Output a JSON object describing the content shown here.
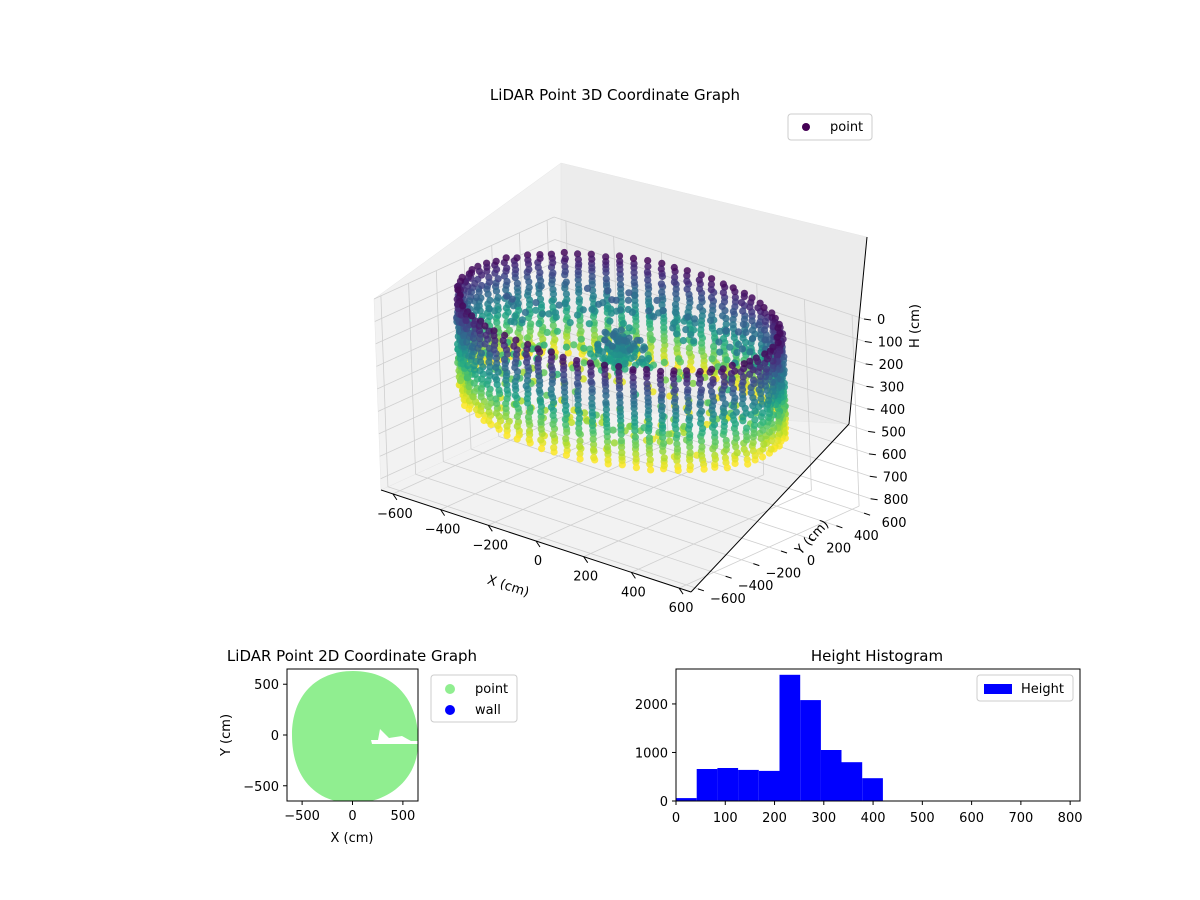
{
  "chart_data": [
    {
      "type": "scatter3d",
      "title": "LiDAR Point 3D Coordinate Graph",
      "xlabel": "X (cm)",
      "ylabel": "Y (cm)",
      "zlabel": "H (cm)",
      "xlim": [
        -650,
        650
      ],
      "ylim": [
        -650,
        650
      ],
      "zlim": [
        0,
        850
      ],
      "z_inverted": true,
      "xticks": [
        "−600",
        "−400",
        "−200",
        "0",
        "200",
        "400",
        "600"
      ],
      "yticks": [
        "−600",
        "−400",
        "−200",
        "0",
        "200",
        "400",
        "600"
      ],
      "zticks": [
        "0",
        "100",
        "200",
        "300",
        "400",
        "500",
        "600",
        "700",
        "800"
      ],
      "colormap": "viridis",
      "legend": {
        "position": "top-right",
        "entries": [
          {
            "label": "point",
            "color": "#440154"
          }
        ]
      },
      "series": [
        {
          "name": "point",
          "description_shape": "cylindrical wall radius ~580, heights 0-450 with central mound"
        }
      ],
      "grid": true
    },
    {
      "type": "scatter",
      "title": "LiDAR Point 2D Coordinate Graph",
      "xlabel": "X (cm)",
      "ylabel": "Y (cm)",
      "xlim": [
        -650,
        650
      ],
      "ylim": [
        -650,
        650
      ],
      "xticks": [
        "−500",
        "0",
        "500"
      ],
      "yticks": [
        "−500",
        "0",
        "500"
      ],
      "legend": {
        "position": "outside-right",
        "entries": [
          {
            "label": "point",
            "color": "#90ee90"
          },
          {
            "label": "wall",
            "color": "#0000ff"
          }
        ]
      },
      "grid": false
    },
    {
      "type": "bar",
      "title": "Height Histogram",
      "xlim": [
        0,
        820
      ],
      "ylim": [
        0,
        2720
      ],
      "xticks": [
        "0",
        "100",
        "200",
        "300",
        "400",
        "500",
        "600",
        "700",
        "800"
      ],
      "yticks": [
        "0",
        "1000",
        "2000"
      ],
      "bin_edges": [
        0,
        42,
        84,
        126,
        168,
        210,
        252,
        294,
        336,
        378,
        420
      ],
      "values": [
        60,
        660,
        680,
        640,
        620,
        2600,
        2080,
        1050,
        800,
        470
      ],
      "series": [
        {
          "name": "Height",
          "color": "#0000ff"
        }
      ],
      "legend": {
        "position": "top-right",
        "entries": [
          {
            "label": "Height",
            "color": "#0000ff"
          }
        ]
      },
      "grid": false
    }
  ]
}
